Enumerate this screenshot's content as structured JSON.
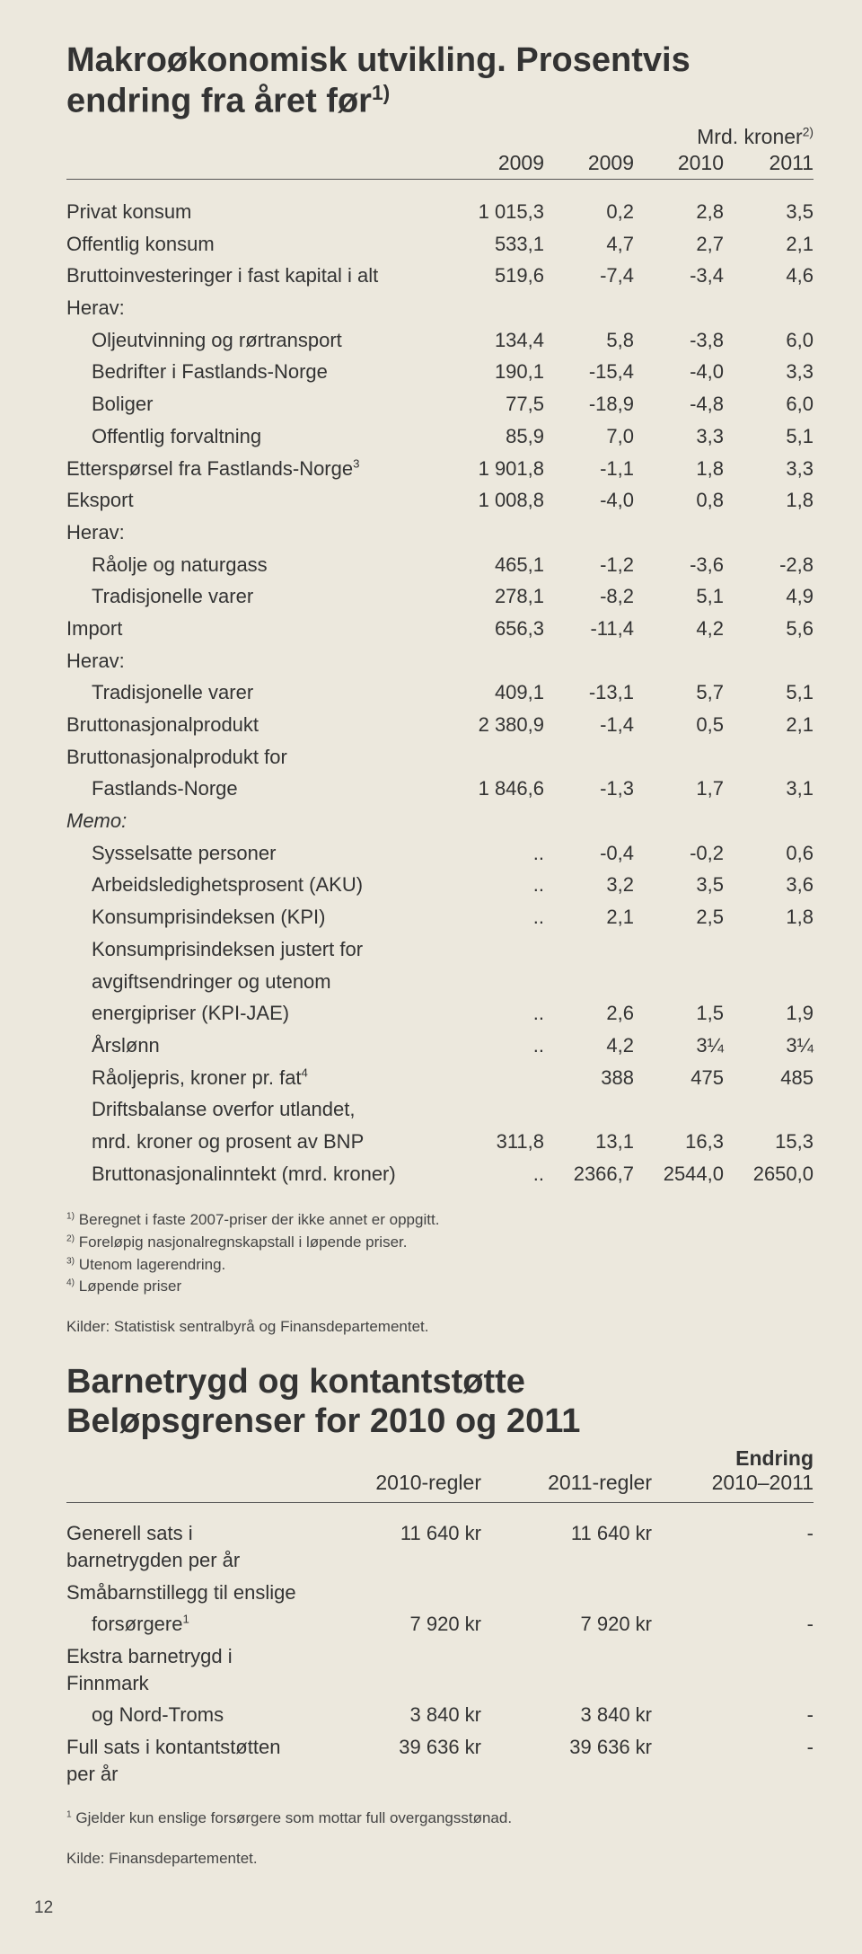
{
  "section1": {
    "title_line1": "Makroøkonomisk utvikling. Prosentvis",
    "title_line2": "endring fra året før",
    "title_sup": "1)",
    "col_header": "Mrd. kroner",
    "col_header_sup": "2)",
    "years": [
      "2009",
      "2009",
      "2010",
      "2011"
    ],
    "rows": [
      {
        "label": "Privat konsum",
        "indent": 0,
        "v": [
          "1 015,3",
          "0,2",
          "2,8",
          "3,5"
        ]
      },
      {
        "label": "Offentlig konsum",
        "indent": 0,
        "v": [
          "533,1",
          "4,7",
          "2,7",
          "2,1"
        ]
      },
      {
        "label": "Bruttoinvesteringer i fast kapital i alt",
        "indent": 0,
        "v": [
          "519,6",
          "-7,4",
          "-3,4",
          "4,6"
        ]
      },
      {
        "label": "Herav:",
        "indent": 0,
        "v": [
          "",
          "",
          "",
          ""
        ]
      },
      {
        "label": "Oljeutvinning og rørtransport",
        "indent": 1,
        "v": [
          "134,4",
          "5,8",
          "-3,8",
          "6,0"
        ]
      },
      {
        "label": "Bedrifter i Fastlands-Norge",
        "indent": 1,
        "v": [
          "190,1",
          "-15,4",
          "-4,0",
          "3,3"
        ]
      },
      {
        "label": "Boliger",
        "indent": 1,
        "v": [
          "77,5",
          "-18,9",
          "-4,8",
          "6,0"
        ]
      },
      {
        "label": "Offentlig forvaltning",
        "indent": 1,
        "v": [
          "85,9",
          "7,0",
          "3,3",
          "5,1"
        ]
      },
      {
        "label": "Etterspørsel fra Fastlands-Norge",
        "sup": "3",
        "indent": 0,
        "v": [
          "1 901,8",
          "-1,1",
          "1,8",
          "3,3"
        ]
      },
      {
        "label": "Eksport",
        "indent": 0,
        "v": [
          "1 008,8",
          "-4,0",
          "0,8",
          "1,8"
        ]
      },
      {
        "label": "Herav:",
        "indent": 0,
        "v": [
          "",
          "",
          "",
          ""
        ]
      },
      {
        "label": "Råolje og naturgass",
        "indent": 1,
        "v": [
          "465,1",
          "-1,2",
          "-3,6",
          "-2,8"
        ]
      },
      {
        "label": "Tradisjonelle varer",
        "indent": 1,
        "v": [
          "278,1",
          "-8,2",
          "5,1",
          "4,9"
        ]
      },
      {
        "label": "Import",
        "indent": 0,
        "v": [
          "656,3",
          "-11,4",
          "4,2",
          "5,6"
        ]
      },
      {
        "label": "Herav:",
        "indent": 0,
        "v": [
          "",
          "",
          "",
          ""
        ]
      },
      {
        "label": "Tradisjonelle varer",
        "indent": 1,
        "v": [
          "409,1",
          "-13,1",
          "5,7",
          "5,1"
        ]
      },
      {
        "label": "Bruttonasjonalprodukt",
        "indent": 0,
        "v": [
          "2 380,9",
          "-1,4",
          "0,5",
          "2,1"
        ]
      },
      {
        "label": "Bruttonasjonalprodukt for",
        "indent": 0,
        "v": [
          "",
          "",
          "",
          ""
        ]
      },
      {
        "label": "Fastlands-Norge",
        "indent": 1,
        "v": [
          "1 846,6",
          "-1,3",
          "1,7",
          "3,1"
        ]
      },
      {
        "label": "Memo:",
        "indent": 0,
        "italic": true,
        "v": [
          "",
          "",
          "",
          ""
        ]
      },
      {
        "label": "Sysselsatte personer",
        "indent": 1,
        "v": [
          "..",
          "-0,4",
          "-0,2",
          "0,6"
        ]
      },
      {
        "label": "Arbeidsledighetsprosent (AKU)",
        "indent": 1,
        "v": [
          "..",
          "3,2",
          "3,5",
          "3,6"
        ]
      },
      {
        "label": "Konsumprisindeksen (KPI)",
        "indent": 1,
        "v": [
          "..",
          "2,1",
          "2,5",
          "1,8"
        ]
      },
      {
        "label": "Konsumprisindeksen justert for",
        "indent": 1,
        "v": [
          "",
          "",
          "",
          ""
        ]
      },
      {
        "label": "avgiftsendringer og utenom",
        "indent": 1,
        "v": [
          "",
          "",
          "",
          ""
        ]
      },
      {
        "label": "energipriser (KPI-JAE)",
        "indent": 1,
        "v": [
          "..",
          "2,6",
          "1,5",
          "1,9"
        ]
      },
      {
        "label": "Årslønn",
        "indent": 1,
        "v": [
          "..",
          "4,2",
          "3¼",
          "3¼"
        ]
      },
      {
        "label": "Råoljepris, kroner pr. fat",
        "sup": "4",
        "indent": 1,
        "v": [
          "",
          "388",
          "475",
          "485"
        ]
      },
      {
        "label": "Driftsbalanse overfor utlandet,",
        "indent": 1,
        "v": [
          "",
          "",
          "",
          ""
        ]
      },
      {
        "label": "mrd. kroner og prosent av BNP",
        "indent": 1,
        "v": [
          "311,8",
          "13,1",
          "16,3",
          "15,3"
        ]
      },
      {
        "label": "Bruttonasjonalinntekt (mrd. kroner)",
        "indent": 1,
        "v": [
          "..",
          "2366,7",
          "2544,0",
          "2650,0"
        ]
      }
    ],
    "footnotes": [
      {
        "sup": "1)",
        "text": " Beregnet i faste 2007-priser der ikke annet er oppgitt."
      },
      {
        "sup": "2)",
        "text": " Foreløpig nasjonalregnskapstall i løpende priser."
      },
      {
        "sup": "3)",
        "text": " Utenom lagerendring."
      },
      {
        "sup": "4)",
        "text": " Løpende priser"
      }
    ],
    "source": "Kilder: Statistisk sentralbyrå og Finansdepartementet."
  },
  "section2": {
    "title_line1": "Barnetrygd og kontantstøtte",
    "title_line2": "Beløpsgrenser for 2010 og 2011",
    "col3_top": "Endring",
    "cols": [
      "2010-regler",
      "2011-regler",
      "2010–2011"
    ],
    "rows": [
      {
        "label": "Generell sats i barnetrygden per år",
        "indent": 0,
        "v": [
          "11 640 kr",
          "11 640 kr",
          "-"
        ]
      },
      {
        "label": "Småbarnstillegg til enslige",
        "indent": 0,
        "v": [
          "",
          "",
          ""
        ]
      },
      {
        "label": "forsørgere",
        "sup": "1",
        "indent": 1,
        "v": [
          "7 920 kr",
          "7 920 kr",
          "-"
        ]
      },
      {
        "label": "Ekstra barnetrygd i Finnmark",
        "indent": 0,
        "v": [
          "",
          "",
          ""
        ]
      },
      {
        "label": "og Nord-Troms",
        "indent": 1,
        "v": [
          "3 840 kr",
          "3 840 kr",
          "-"
        ]
      },
      {
        "label": "Full sats i kontantstøtten per år",
        "indent": 0,
        "v": [
          "39 636 kr",
          "39 636 kr",
          "-"
        ]
      }
    ],
    "footnote": {
      "sup": "1",
      "text": " Gjelder kun enslige forsørgere som mottar full overgangsstønad."
    },
    "source": "Kilde: Finansdepartementet."
  },
  "page_number": "12",
  "style": {
    "background_color": "#ece8dd",
    "text_color": "#333333",
    "rule_color": "#555555",
    "title_fontsize": 38,
    "body_fontsize": 22,
    "header_fontsize": 23,
    "footnote_fontsize": 17
  }
}
